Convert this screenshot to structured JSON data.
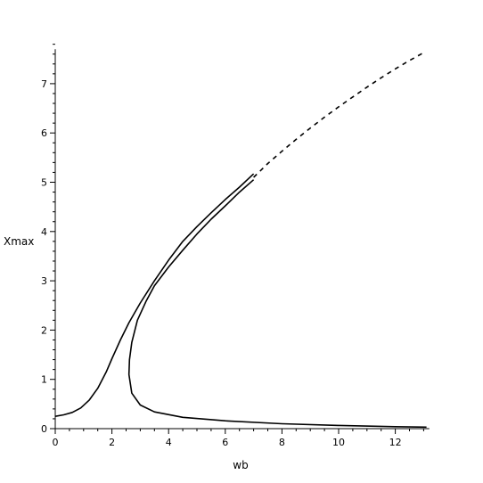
{
  "chart_data": {
    "type": "line",
    "title": "",
    "xlabel": "wb",
    "ylabel": "Xmax",
    "xlim": [
      0,
      13.2
    ],
    "ylim": [
      0,
      7.7
    ],
    "xticks": [
      0,
      2,
      4,
      6,
      8,
      10,
      12
    ],
    "yticks": [
      0,
      1,
      2,
      3,
      4,
      5,
      6,
      7
    ],
    "grid": false,
    "legend": "none",
    "line_color": "#000000",
    "series": [
      {
        "style": "solid",
        "points": [
          [
            0,
            0.25
          ],
          [
            0.3,
            0.28
          ],
          [
            0.6,
            0.33
          ],
          [
            0.9,
            0.42
          ],
          [
            1.2,
            0.58
          ],
          [
            1.5,
            0.82
          ],
          [
            1.8,
            1.15
          ],
          [
            2.0,
            1.42
          ],
          [
            2.3,
            1.8
          ],
          [
            2.6,
            2.15
          ],
          [
            3.0,
            2.55
          ],
          [
            3.5,
            3.0
          ],
          [
            4.0,
            3.42
          ],
          [
            4.5,
            3.8
          ],
          [
            5.0,
            4.1
          ],
          [
            5.5,
            4.38
          ],
          [
            6.0,
            4.65
          ],
          [
            6.5,
            4.9
          ],
          [
            7.0,
            5.17
          ]
        ]
      },
      {
        "style": "solid",
        "points": [
          [
            7.0,
            5.05
          ],
          [
            6.5,
            4.8
          ],
          [
            6.0,
            4.52
          ],
          [
            5.5,
            4.25
          ],
          [
            5.0,
            3.95
          ],
          [
            4.5,
            3.62
          ],
          [
            4.0,
            3.28
          ],
          [
            3.5,
            2.9
          ],
          [
            3.2,
            2.58
          ],
          [
            2.9,
            2.2
          ],
          [
            2.7,
            1.75
          ],
          [
            2.62,
            1.4
          ],
          [
            2.6,
            1.1
          ],
          [
            2.7,
            0.72
          ],
          [
            3.0,
            0.48
          ],
          [
            3.5,
            0.34
          ],
          [
            4.5,
            0.23
          ],
          [
            6,
            0.16
          ],
          [
            8,
            0.1
          ],
          [
            10,
            0.065
          ],
          [
            12,
            0.04
          ],
          [
            13.1,
            0.03
          ]
        ]
      },
      {
        "style": "dashed",
        "points": [
          [
            7.0,
            5.1
          ],
          [
            7.5,
            5.38
          ],
          [
            8.0,
            5.63
          ],
          [
            8.5,
            5.87
          ],
          [
            9.0,
            6.1
          ],
          [
            9.5,
            6.32
          ],
          [
            10.0,
            6.53
          ],
          [
            10.5,
            6.73
          ],
          [
            11.0,
            6.93
          ],
          [
            11.5,
            7.12
          ],
          [
            12.0,
            7.3
          ],
          [
            12.5,
            7.47
          ],
          [
            13.0,
            7.63
          ]
        ]
      }
    ]
  }
}
